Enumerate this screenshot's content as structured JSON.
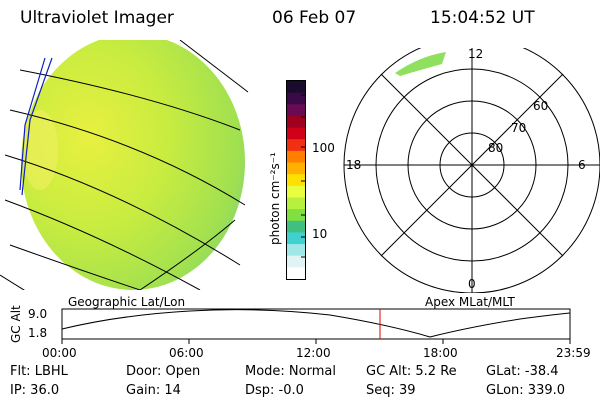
{
  "header": {
    "title": "Ultraviolet Imager",
    "date": "06 Feb 07",
    "time": "15:04:52 UT"
  },
  "colorbar": {
    "unit_label": "photon cm⁻²s⁻¹",
    "tick_100": "100",
    "tick_10": "10",
    "colors": [
      "#1a0a2e",
      "#3a0a48",
      "#6a0a52",
      "#a00020",
      "#d0001a",
      "#f03010",
      "#ff8000",
      "#ffb000",
      "#ffe000",
      "#e8ff40",
      "#b8f040",
      "#80e040",
      "#40c080",
      "#40d0d0",
      "#a0e8e8",
      "#e0f4f4",
      "#ffffff"
    ]
  },
  "geo_panel": {
    "label": "Geographic Lat/Lon"
  },
  "polar_panel": {
    "label": "Apex MLat/MLT",
    "mlt_top": "12",
    "mlt_left": "18",
    "mlt_right": "6",
    "mlt_bottom": "0",
    "lat_60": "60",
    "lat_70": "70",
    "lat_80": "80"
  },
  "altitude_plot": {
    "ylabel": "GC Alt",
    "ytick_high": "9.0",
    "ytick_low": "1.8",
    "xticks": [
      "00:00",
      "06:00",
      "12:00",
      "18:00",
      "23:59"
    ]
  },
  "status": {
    "flt": "Flt: LBHL",
    "ip": "IP: 36.0",
    "door": "Door: Open",
    "gain": "Gain: 14",
    "mode": "Mode: Normal",
    "dsp": "Dsp:    -0.0",
    "gc_alt": "GC Alt: 5.2 Re",
    "seq": "Seq: 39",
    "glat": "GLat: -38.4",
    "glon": "GLon: 339.0"
  }
}
